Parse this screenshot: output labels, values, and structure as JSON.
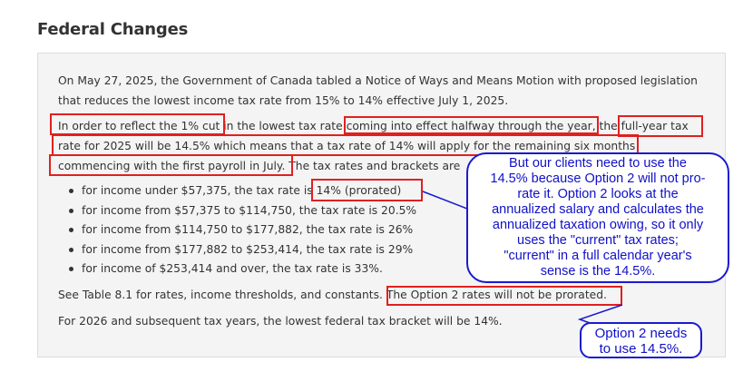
{
  "section": {
    "title": "Federal Changes"
  },
  "paragraphs": {
    "p1_line1": "On May 27, 2025, the Government of Canada tabled a Notice of Ways and Means Motion with proposed legislation",
    "p1_line2": "that reduces the lowest income tax rate from 15% to 14% effective July 1, 2025.",
    "p2_line1": "In order to reflect the 1% cut in the lowest tax rate coming into effect halfway through the year, the full-year tax",
    "p2_line2": "rate for 2025 will be 14.5% which means that a tax rate of 14% will apply for the remaining six months",
    "p2_line3": "commencing with the first payroll in July. The tax rates and brackets are",
    "p3": "See Table 8.1 for rates, income thresholds, and constants. The Option 2 rates will not be prorated.",
    "p4": "For 2026 and subsequent tax years, the lowest federal tax bracket will be 14%."
  },
  "brackets": [
    "for income under $57,375, the tax rate is 14% (prorated)",
    "for income from $57,375 to $114,750, the tax rate is 20.5%",
    "for income from $114,750 to $177,882, the tax rate is 26%",
    "for income from $177,882 to $253,414, the tax rate is 29%",
    "for income of $253,414 and over, the tax rate is 33%."
  ],
  "callouts": {
    "main": [
      "But our clients need to use the",
      "14.5% because Option 2 will not pro-",
      "rate it.  Option 2 looks at the",
      "annualized salary and calculates the",
      "annualized taxation owing, so it only",
      "uses the \"current\" tax rates;",
      "\"current\" in a full calendar year's",
      "sense is the 14.5%."
    ],
    "small": [
      "Option 2 needs",
      "to use 14.5%."
    ]
  },
  "colors": {
    "highlight_box": "#e02020",
    "callout_text": "#1010c8",
    "panel_background": "#f4f4f4"
  }
}
